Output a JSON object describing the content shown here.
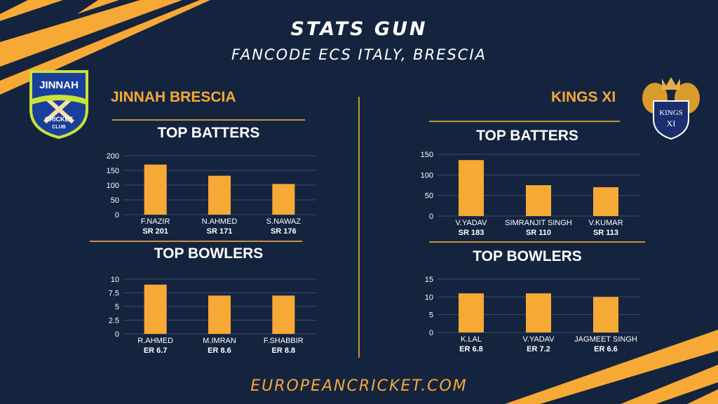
{
  "header": {
    "title": "STATS GUN",
    "subtitle": "FANCODE ECS ITALY, BRESCIA"
  },
  "footer": {
    "site": "EUROPEANCRICKET.COM"
  },
  "teams": {
    "left": {
      "name": "JINNAH BRESCIA",
      "logo_text": [
        "JINNAH",
        "CRICKET",
        "CLUB"
      ]
    },
    "right": {
      "name": "KINGS XI",
      "logo_text": [
        "KINGS",
        "XI"
      ]
    }
  },
  "sections": {
    "left_batters": "TOP BATTERS",
    "left_bowlers": "TOP BOWLERS",
    "right_batters": "TOP BATTERS",
    "right_bowlers": "TOP BOWLERS"
  },
  "colors": {
    "background": "#14243f",
    "accent": "#f7a935",
    "bar": "#f7a935",
    "text": "#ffffff"
  },
  "chart_data": [
    {
      "id": "left_batters",
      "type": "bar",
      "categories": [
        "F.NAZIR",
        "N.AHMED",
        "S.NAWAZ"
      ],
      "values": [
        170,
        132,
        104
      ],
      "sublabels": [
        "SR 201",
        "SR 171",
        "SR 176"
      ],
      "yticks": [
        "0",
        "50",
        "100",
        "150",
        "200"
      ],
      "ylim": [
        0,
        200
      ],
      "grid": true
    },
    {
      "id": "left_bowlers",
      "type": "bar",
      "categories": [
        "R.AHMED",
        "M.IMRAN",
        "F.SHABBIR"
      ],
      "values": [
        9,
        7,
        7
      ],
      "sublabels": [
        "ER 6.7",
        "ER 8.6",
        "ER 8.8"
      ],
      "yticks": [
        "0",
        "2.5",
        "5",
        "7.5",
        "10"
      ],
      "ylim": [
        0,
        10
      ],
      "grid": true
    },
    {
      "id": "right_batters",
      "type": "bar",
      "categories": [
        "V.YADAV",
        "SIMRANJIT SINGH",
        "V.KUMAR"
      ],
      "values": [
        136,
        75,
        70
      ],
      "sublabels": [
        "SR 183",
        "SR 110",
        "SR 113"
      ],
      "yticks": [
        "0",
        "50",
        "100",
        "150"
      ],
      "ylim": [
        0,
        150
      ],
      "grid": true
    },
    {
      "id": "right_bowlers",
      "type": "bar",
      "categories": [
        "K.LAL",
        "V.YADAV",
        "JAGMEET SINGH"
      ],
      "values": [
        11,
        11,
        10
      ],
      "sublabels": [
        "ER 6.8",
        "ER 7.2",
        "ER 6.6"
      ],
      "yticks": [
        "0",
        "5",
        "10",
        "15"
      ],
      "ylim": [
        0,
        15
      ],
      "grid": true
    }
  ]
}
